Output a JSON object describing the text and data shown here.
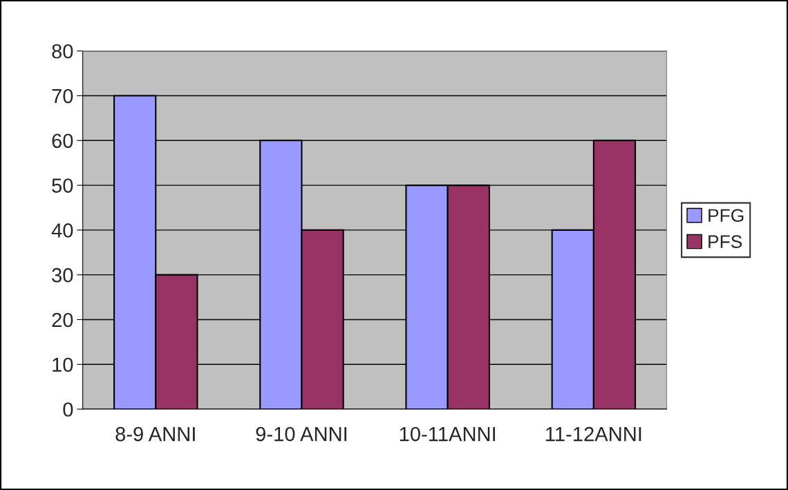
{
  "chart_data": {
    "type": "bar",
    "categories": [
      "8-9 ANNI",
      "9-10 ANNI",
      "10-11ANNI",
      "11-12ANNI"
    ],
    "series": [
      {
        "name": "PFG",
        "color": "#9999ff",
        "values": [
          70,
          60,
          50,
          40
        ]
      },
      {
        "name": "PFS",
        "color": "#993366",
        "values": [
          30,
          40,
          50,
          60
        ]
      }
    ],
    "ylim": [
      0,
      80
    ],
    "yticks": [
      0,
      10,
      20,
      30,
      40,
      50,
      60,
      70,
      80
    ],
    "grid": "y",
    "legend": "right"
  }
}
